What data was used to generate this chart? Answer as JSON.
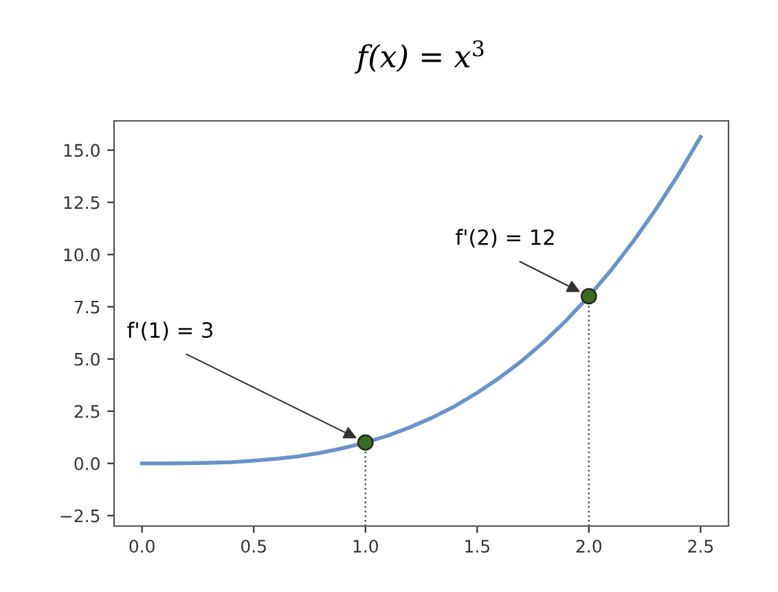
{
  "chart_data": {
    "type": "line",
    "title": "f(x) = x$^{3}$",
    "xlim": [
      -0.125,
      2.625
    ],
    "xticks": [
      {
        "value": 0,
        "label": "0.0"
      },
      0.5,
      {
        "value": 1,
        "label": "1.0"
      },
      1.5,
      {
        "value": 2,
        "label": "2.0"
      },
      2.5
    ],
    "ylim": [
      -3,
      16.4
    ],
    "yticks": [
      {
        "value": -2.5,
        "label": "−2.5"
      },
      {
        "value": 0,
        "label": "0.0"
      },
      2.5,
      {
        "value": 5,
        "label": "5.0"
      },
      7.5,
      {
        "value": 10,
        "label": "10.0"
      },
      12.5,
      {
        "value": 15,
        "label": "15.0"
      }
    ],
    "grid": false,
    "series": [
      {
        "color": "#6a93c9",
        "x": [
          0,
          0.1,
          0.2,
          0.3,
          0.4,
          0.5,
          0.6,
          0.7,
          0.8,
          0.9,
          1.0,
          1.1,
          1.2,
          1.3,
          1.4,
          1.5,
          1.6,
          1.7,
          1.8,
          1.9,
          2.0,
          2.1,
          2.2,
          2.3,
          2.4,
          2.5
        ],
        "values": [
          0,
          0,
          0.01,
          0.03,
          0.06,
          0.13,
          0.22,
          0.34,
          0.51,
          0.73,
          1,
          1.33,
          1.73,
          2.2,
          2.74,
          3.38,
          4.1,
          4.91,
          5.83,
          6.86,
          8,
          9.26,
          10.65,
          12.17,
          13.82,
          15.63
        ]
      },
      {
        "type": "scatter",
        "color": "#3a6b23",
        "marker": "circle",
        "x": [
          1,
          2
        ],
        "values": [
          1,
          8
        ]
      }
    ],
    "ref_lines": [
      {
        "axis": "x",
        "value": 1,
        "line_style": "dotted",
        "color": "#555555"
      },
      {
        "axis": "x",
        "value": 2,
        "line_style": "dotted",
        "color": "#555555"
      }
    ],
    "annotations": [
      {
        "text": "f'(1) = 3",
        "x": 1,
        "y": 1
      },
      {
        "text": "f'(2) = 12",
        "x": 2,
        "y": 8
      }
    ]
  }
}
